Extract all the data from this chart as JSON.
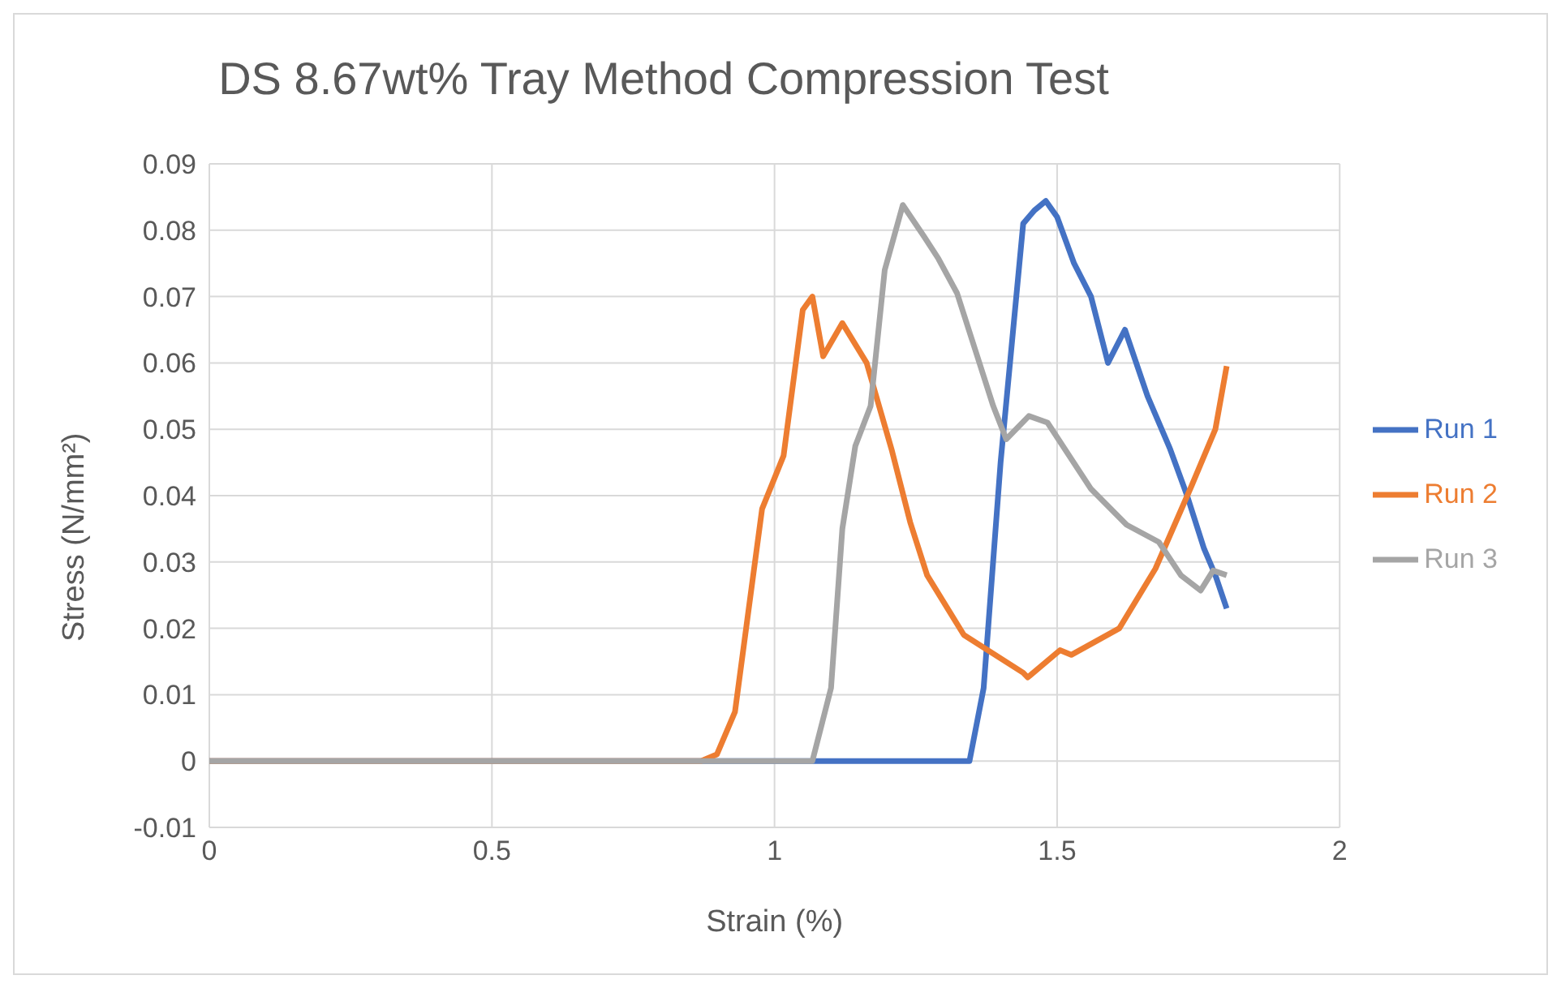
{
  "chart_data": {
    "type": "line",
    "title": "DS 8.67wt% Tray Method Compression Test",
    "xlabel": "Strain (%)",
    "ylabel": "Stress (N/mm²)",
    "xlim": [
      0,
      2
    ],
    "xticks": [
      0,
      0.5,
      1,
      1.5,
      2
    ],
    "ylim": [
      -0.01,
      0.09
    ],
    "yticks": [
      -0.01,
      0,
      0.01,
      0.02,
      0.03,
      0.04,
      0.05,
      0.06,
      0.07,
      0.08,
      0.09
    ],
    "grid": true,
    "legend": "right",
    "marker": "none",
    "line_style": "solid",
    "series": [
      {
        "name": "Run 1",
        "color": "#4472c4",
        "x": [
          0,
          1.345,
          1.37,
          1.4,
          1.44,
          1.46,
          1.48,
          1.5,
          1.53,
          1.56,
          1.59,
          1.62,
          1.66,
          1.7,
          1.73,
          1.76,
          1.78,
          1.8
        ],
        "values": [
          0,
          0,
          0.011,
          0.045,
          0.081,
          0.083,
          0.0844,
          0.082,
          0.075,
          0.07,
          0.06,
          0.065,
          0.055,
          0.047,
          0.04,
          0.032,
          0.028,
          0.023
        ]
      },
      {
        "name": "Run 2",
        "color": "#ed7d31",
        "x": [
          0,
          0.87,
          0.898,
          0.93,
          0.978,
          1.016,
          1.05,
          1.067,
          1.086,
          1.12,
          1.163,
          1.207,
          1.24,
          1.27,
          1.335,
          1.44,
          1.448,
          1.505,
          1.525,
          1.61,
          1.674,
          1.738,
          1.78,
          1.8
        ],
        "values": [
          0,
          0,
          0.001,
          0.0074,
          0.038,
          0.046,
          0.068,
          0.07,
          0.061,
          0.066,
          0.06,
          0.047,
          0.036,
          0.028,
          0.019,
          0.0133,
          0.0126,
          0.0167,
          0.016,
          0.02,
          0.029,
          0.0415,
          0.05,
          0.0595
        ]
      },
      {
        "name": "Run 3",
        "color": "#a5a5a5",
        "x": [
          0,
          1.067,
          1.1,
          1.12,
          1.143,
          1.17,
          1.195,
          1.227,
          1.265,
          1.29,
          1.323,
          1.355,
          1.387,
          1.41,
          1.45,
          1.483,
          1.56,
          1.623,
          1.68,
          1.719,
          1.754,
          1.776,
          1.8
        ],
        "values": [
          0,
          0,
          0.011,
          0.035,
          0.0475,
          0.0535,
          0.074,
          0.0838,
          0.079,
          0.0757,
          0.0705,
          0.062,
          0.0535,
          0.0485,
          0.052,
          0.051,
          0.041,
          0.0356,
          0.033,
          0.028,
          0.0257,
          0.0287,
          0.028
        ]
      }
    ]
  }
}
